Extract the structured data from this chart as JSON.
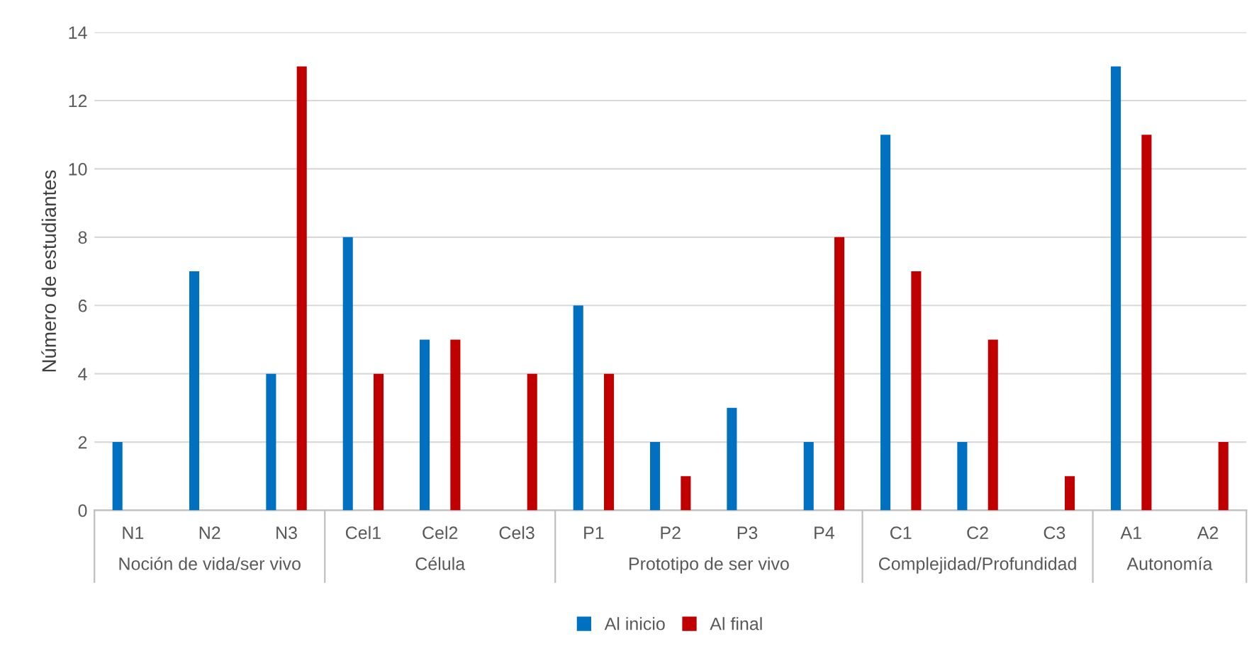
{
  "chart_data": {
    "type": "bar",
    "ylabel": "Número de estudiantes",
    "categories": [
      "N1",
      "N2",
      "N3",
      "Cel1",
      "Cel2",
      "Cel3",
      "P1",
      "P2",
      "P3",
      "P4",
      "C1",
      "C2",
      "C3",
      "A1",
      "A2"
    ],
    "series": [
      {
        "name": "Al inicio",
        "color": "#0070c0",
        "values": [
          2,
          7,
          4,
          8,
          5,
          0,
          6,
          2,
          3,
          2,
          11,
          2,
          0,
          13,
          0
        ]
      },
      {
        "name": "Al final",
        "color": "#c00000",
        "values": [
          0,
          0,
          13,
          4,
          5,
          4,
          4,
          1,
          0,
          8,
          7,
          5,
          1,
          11,
          2
        ]
      }
    ],
    "ylim": [
      0,
      14
    ],
    "yticks": [
      0,
      2,
      4,
      6,
      8,
      10,
      12,
      14
    ],
    "grid": "y",
    "legend": "bottom",
    "annotations": [
      "Noción de vida/ser vivo",
      "Célula",
      "Prototipo de ser vivo",
      "Complejidad/Profundidad",
      "Autonomía"
    ]
  }
}
